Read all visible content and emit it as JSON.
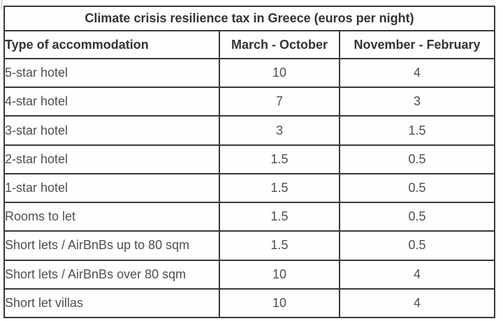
{
  "chart_data": {
    "type": "table",
    "title": "Climate crisis resilience tax in Greece (euros per night)",
    "columns": [
      "Type of accommodation",
      "March - October",
      "November - February"
    ],
    "rows": [
      [
        "5-star hotel",
        "10",
        "4"
      ],
      [
        "4-star hotel",
        "7",
        "3"
      ],
      [
        "3-star hotel",
        "3",
        "1.5"
      ],
      [
        "2-star hotel",
        "1.5",
        "0.5"
      ],
      [
        "1-star hotel",
        "1.5",
        "0.5"
      ],
      [
        "Rooms to let",
        "1.5",
        "0.5"
      ],
      [
        "Short lets / AirBnBs up to 80 sqm",
        "1.5",
        "0.5"
      ],
      [
        "Short lets / AirBnBs over 80 sqm",
        "10",
        "4"
      ],
      [
        "Short let villas",
        "10",
        "4"
      ]
    ],
    "units": "euros per night",
    "layout_hints": {
      "grid": "on",
      "title_row_spans_all_columns": true,
      "first_column_align": "left",
      "value_columns_align": "center"
    }
  },
  "colors": {
    "border": "#383838",
    "heading_text": "#333333",
    "cell_text": "#4f4f4f",
    "background": "#ffffff"
  }
}
